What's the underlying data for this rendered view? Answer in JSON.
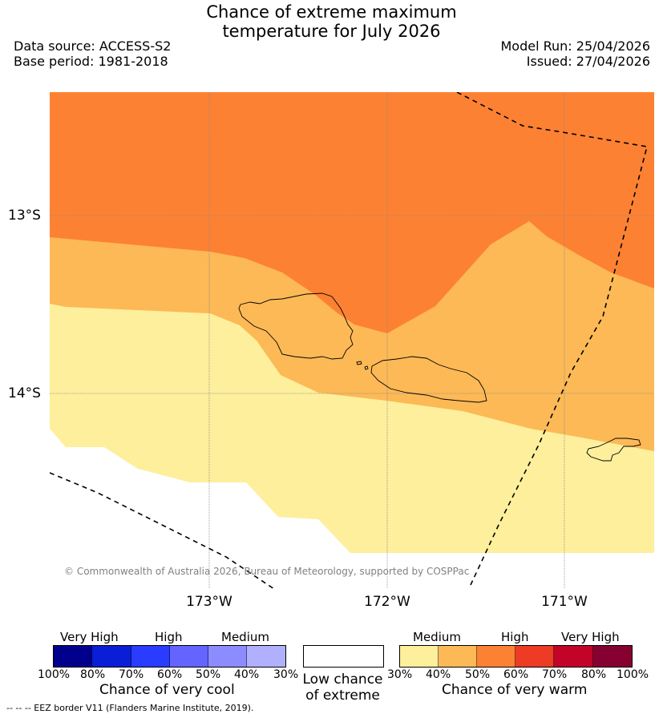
{
  "header": {
    "title_line1": "Chance of extreme maximum",
    "title_line2": "temperature for July 2026",
    "data_source": "Data source: ACCESS-S2",
    "base_period": "Base period: 1981-2018",
    "model_run": "Model Run: 25/04/2026",
    "issued": "Issued: 27/04/2026"
  },
  "map": {
    "lat_labels": [
      "13°S",
      "14°S"
    ],
    "lon_labels": [
      "173°W",
      "172°W",
      "171°W"
    ],
    "copyright": "© Commonwealth of Australia 2026, Bureau of Meteorology, supported by COSPPac",
    "colors": {
      "medium_warm": "#fdef9c",
      "medium_high_warm": "#fcb956",
      "high_warm": "#fd8133",
      "eez_border": "#000000"
    }
  },
  "legend": {
    "cool": {
      "categories": [
        "Very High",
        "High",
        "Medium"
      ],
      "ticks": [
        "100%",
        "80%",
        "70%",
        "60%",
        "50%",
        "40%",
        "30%"
      ],
      "title": "Chance of very cool",
      "colors": [
        "#00008c",
        "#0a1ed7",
        "#2a3cff",
        "#6464ff",
        "#8c8cff",
        "#b0b0ff"
      ]
    },
    "neutral": {
      "title_line1": "Low chance",
      "title_line2": "of extreme",
      "color": "#ffffff"
    },
    "warm": {
      "categories": [
        "Medium",
        "High",
        "Very High"
      ],
      "ticks": [
        "30%",
        "40%",
        "50%",
        "60%",
        "70%",
        "80%",
        "100%"
      ],
      "title": "Chance of very warm",
      "colors": [
        "#fdef9c",
        "#fcb956",
        "#fd8133",
        "#ee3b25",
        "#c10427",
        "#860131"
      ]
    }
  },
  "footer": {
    "eez_note": "--  --  -- EEZ border V11 (Flanders Marine Institute, 2019)."
  }
}
